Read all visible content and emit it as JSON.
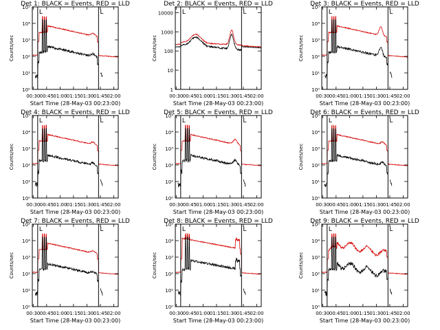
{
  "chart_data": [
    {
      "type": "line",
      "title": "Det 1: BLACK = Events, RED = LLD",
      "ylabel": "Counts/sec",
      "xlabel": "Start Time (28-May-03 00:23:00)",
      "y_scale": "log",
      "ylim_exp": [
        0,
        5
      ],
      "ytick_labels": [
        "10⁰",
        "10¹",
        "10²",
        "10³",
        "10⁴",
        "10⁵"
      ],
      "x_range_min": [
        29,
        125
      ],
      "xtick_minutes": [
        30,
        45,
        60,
        75,
        90,
        105,
        120
      ],
      "xtick_labels": [
        "00:30",
        "00:45",
        "01:00",
        "01:15",
        "01:30",
        "01:45",
        "02:00"
      ],
      "vlines_min": [
        35,
        103
      ],
      "L_markers": [
        "L",
        "L"
      ],
      "profile": "A",
      "series": [
        {
          "name": "Events",
          "color": "#000000"
        },
        {
          "name": "LLD",
          "color": "#d40000"
        }
      ]
    },
    {
      "type": "line",
      "title": "Det 2: BLACK = Events, RED = LLD",
      "ylabel": "Counts/sec",
      "xlabel": "Start Time (28-May-03 00:23:00)",
      "y_scale": "log",
      "ylim_exp": [
        0,
        4.3
      ],
      "ytick_labels": [
        "1",
        "10",
        "100",
        "1000",
        "10000"
      ],
      "x_range_min": [
        29,
        125
      ],
      "xtick_minutes": [
        30,
        45,
        60,
        75,
        90,
        105,
        120
      ],
      "xtick_labels": [
        "00:30",
        "00:45",
        "01:00",
        "01:15",
        "01:30",
        "01:45",
        "02:00"
      ],
      "vlines_min": [
        35,
        103
      ],
      "L_markers": [
        "L",
        "L"
      ],
      "profile": "B",
      "series": [
        {
          "name": "Events",
          "color": "#000000"
        },
        {
          "name": "LLD",
          "color": "#d40000"
        }
      ]
    },
    {
      "type": "line",
      "title": "Det 3: BLACK = Events, RED = LLD",
      "ylabel": "Counts/sec",
      "xlabel": "Start Time (28-May-03 00:23:00)",
      "y_scale": "log",
      "ylim_exp": [
        0,
        5
      ],
      "ytick_labels": [
        "10⁰",
        "10¹",
        "10²",
        "10³",
        "10⁴",
        "10⁵"
      ],
      "x_range_min": [
        29,
        125
      ],
      "xtick_minutes": [
        30,
        45,
        60,
        75,
        90,
        105,
        120
      ],
      "xtick_labels": [
        "00:30",
        "00:45",
        "01:00",
        "01:15",
        "01:30",
        "01:45",
        "02:00"
      ],
      "vlines_min": [
        35,
        103
      ],
      "L_markers": [
        "L",
        "L"
      ],
      "profile": "C",
      "series": [
        {
          "name": "Events",
          "color": "#000000"
        },
        {
          "name": "LLD",
          "color": "#d40000"
        }
      ]
    },
    {
      "type": "line",
      "title": "Det 4: BLACK = Events, RED = LLD",
      "ylabel": "Counts/sec",
      "xlabel": "Start Time (28-May-03 00:23:00)",
      "y_scale": "log",
      "ylim_exp": [
        0,
        5
      ],
      "ytick_labels": [
        "10⁰",
        "10¹",
        "10²",
        "10³",
        "10⁴",
        "10⁵"
      ],
      "x_range_min": [
        29,
        125
      ],
      "xtick_minutes": [
        30,
        45,
        60,
        75,
        90,
        105,
        120
      ],
      "xtick_labels": [
        "00:30",
        "00:45",
        "01:00",
        "01:15",
        "01:30",
        "01:45",
        "02:00"
      ],
      "vlines_min": [
        35,
        103
      ],
      "L_markers": [
        "L",
        "L"
      ],
      "profile": "A",
      "series": [
        {
          "name": "Events",
          "color": "#000000"
        },
        {
          "name": "LLD",
          "color": "#d40000"
        }
      ]
    },
    {
      "type": "line",
      "title": "Det 5: BLACK = Events, RED = LLD",
      "ylabel": "Counts/sec",
      "xlabel": "Start Time (28-May-03 00:23:00)",
      "y_scale": "log",
      "ylim_exp": [
        0,
        5
      ],
      "ytick_labels": [
        "10⁰",
        "10¹",
        "10²",
        "10³",
        "10⁴",
        "10⁵"
      ],
      "x_range_min": [
        29,
        125
      ],
      "xtick_minutes": [
        30,
        45,
        60,
        75,
        90,
        105,
        120
      ],
      "xtick_labels": [
        "00:30",
        "00:45",
        "01:00",
        "01:15",
        "01:30",
        "01:45",
        "02:00"
      ],
      "vlines_min": [
        35,
        103
      ],
      "L_markers": [
        "L",
        "L"
      ],
      "profile": "D",
      "series": [
        {
          "name": "Events",
          "color": "#000000"
        },
        {
          "name": "LLD",
          "color": "#d40000"
        }
      ]
    },
    {
      "type": "line",
      "title": "Det 6: BLACK = Events, RED = LLD",
      "ylabel": "Counts/sec",
      "xlabel": "Start Time (28-May-03 00:23:00)",
      "y_scale": "log",
      "ylim_exp": [
        0,
        5
      ],
      "ytick_labels": [
        "10⁰",
        "10¹",
        "10²",
        "10³",
        "10⁴",
        "10⁵"
      ],
      "x_range_min": [
        29,
        125
      ],
      "xtick_minutes": [
        30,
        45,
        60,
        75,
        90,
        105,
        120
      ],
      "xtick_labels": [
        "00:30",
        "00:45",
        "01:00",
        "01:15",
        "01:30",
        "01:45",
        "02:00"
      ],
      "vlines_min": [
        35,
        103
      ],
      "L_markers": [
        "L",
        "L"
      ],
      "profile": "A",
      "series": [
        {
          "name": "Events",
          "color": "#000000"
        },
        {
          "name": "LLD",
          "color": "#d40000"
        }
      ]
    },
    {
      "type": "line",
      "title": "Det 7: BLACK = Events, RED = LLD",
      "ylabel": "Counts/sec",
      "xlabel": "Start Time (28-May-03 00:23:00)",
      "y_scale": "log",
      "ylim_exp": [
        0,
        5
      ],
      "ytick_labels": [
        "10⁰",
        "10¹",
        "10²",
        "10³",
        "10⁴",
        "10⁵"
      ],
      "x_range_min": [
        29,
        125
      ],
      "xtick_minutes": [
        30,
        45,
        60,
        75,
        90,
        105,
        120
      ],
      "xtick_labels": [
        "00:30",
        "00:45",
        "01:00",
        "01:15",
        "01:30",
        "01:45",
        "02:00"
      ],
      "vlines_min": [
        35,
        103
      ],
      "L_markers": [
        "L",
        "L"
      ],
      "profile": "A",
      "series": [
        {
          "name": "Events",
          "color": "#000000"
        },
        {
          "name": "LLD",
          "color": "#d40000"
        }
      ]
    },
    {
      "type": "line",
      "title": "Det 8: BLACK = Events, RED = LLD",
      "ylabel": "Counts/sec",
      "xlabel": "Start Time (28-May-03 00:23:00)",
      "y_scale": "log",
      "ylim_exp": [
        0,
        5
      ],
      "ytick_labels": [
        "10⁰",
        "10¹",
        "10²",
        "10³",
        "10⁴",
        "10⁵"
      ],
      "x_range_min": [
        29,
        125
      ],
      "xtick_minutes": [
        30,
        45,
        60,
        75,
        90,
        105,
        120
      ],
      "xtick_labels": [
        "00:30",
        "00:45",
        "01:00",
        "01:15",
        "01:30",
        "01:45",
        "02:00"
      ],
      "vlines_min": [
        35,
        103
      ],
      "L_markers": [
        "L",
        "L"
      ],
      "profile": "E",
      "series": [
        {
          "name": "Events",
          "color": "#000000"
        },
        {
          "name": "LLD",
          "color": "#d40000"
        }
      ]
    },
    {
      "type": "line",
      "title": "Det 9: BLACK = Events, RED = LLD",
      "ylabel": "Counts/sec",
      "xlabel": "Start Time (28-May-03 00:23:00)",
      "y_scale": "log",
      "ylim_exp": [
        0,
        5
      ],
      "ytick_labels": [
        "10⁰",
        "10¹",
        "10²",
        "10³",
        "10⁴",
        "10⁵"
      ],
      "x_range_min": [
        29,
        125
      ],
      "xtick_minutes": [
        30,
        45,
        60,
        75,
        90,
        105,
        120
      ],
      "xtick_labels": [
        "00:30",
        "00:45",
        "01:00",
        "01:15",
        "01:30",
        "01:45",
        "02:00"
      ],
      "vlines_min": [
        35,
        103
      ],
      "L_markers": [
        "L",
        "L"
      ],
      "profile": "F",
      "series": [
        {
          "name": "Events",
          "color": "#000000"
        },
        {
          "name": "LLD",
          "color": "#d40000"
        }
      ]
    }
  ]
}
